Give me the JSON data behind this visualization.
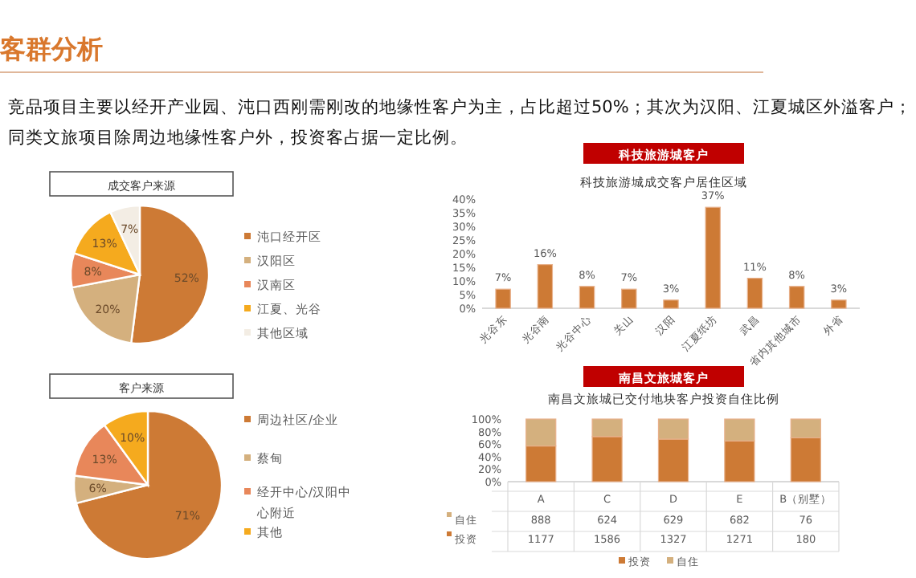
{
  "chart_data": [
    {
      "type": "other",
      "title": "客群分析",
      "annotations": [
        "竞品项目主要以经开产业园、沌口西刚需刚改的地缘性客户为主，占比超过50%；其次为汉阳、江夏城区外溢客户；同类文旅项目除周边地缘性客户外，投资客占据一定比例。"
      ]
    },
    {
      "type": "pie",
      "title": "成交客户来源",
      "categories": [
        "沌口经开区",
        "汉阳区",
        "汉南区",
        "江夏、光谷",
        "其他区域"
      ],
      "values": [
        52,
        20,
        8,
        13,
        7
      ],
      "colors": [
        "#cd7a35",
        "#d4b07e",
        "#e8875a",
        "#f5aa1e",
        "#f3ede4"
      ],
      "value_labels": [
        "52%",
        "20%",
        "8%",
        "13%",
        "7%"
      ],
      "legend": "right"
    },
    {
      "type": "bar",
      "subtitle": "科技旅游城客户",
      "title": "科技旅游城成交客户居住区域",
      "categories": [
        "光谷东",
        "光谷南",
        "光谷中心",
        "关山",
        "汉阳",
        "江夏纸坊",
        "武昌",
        "省内其他城市",
        "外省"
      ],
      "values": [
        7,
        16,
        8,
        7,
        3,
        37,
        11,
        8,
        3
      ],
      "value_labels": [
        "7%",
        "16%",
        "8%",
        "7%",
        "3%",
        "37%",
        "11%",
        "8%",
        "3%"
      ],
      "color": "#cd7a35",
      "ylim": [
        0,
        40
      ],
      "yticks": [
        {
          "value": 0,
          "label": "0%"
        },
        {
          "value": 5,
          "label": "5%"
        },
        {
          "value": 10,
          "label": "10%"
        },
        {
          "value": 15,
          "label": "15%"
        },
        {
          "value": 20,
          "label": "20%"
        },
        {
          "value": 25,
          "label": "25%"
        },
        {
          "value": 30,
          "label": "30%"
        },
        {
          "value": 35,
          "label": "35%"
        },
        {
          "value": 40,
          "label": "40%"
        }
      ],
      "grid": false
    },
    {
      "type": "pie",
      "title": "客户来源",
      "categories": [
        "周边社区/企业",
        "蔡甸",
        "经开中心/汉阳中心附近",
        "其他"
      ],
      "values": [
        71,
        6,
        13,
        10
      ],
      "colors": [
        "#cd7a35",
        "#d4b07e",
        "#e8875a",
        "#f5aa1e"
      ],
      "value_labels": [
        "71%",
        "6%",
        "13%",
        "10%"
      ],
      "legend": "right"
    },
    {
      "type": "bar",
      "subtitle": "南昌文旅城客户",
      "title": "南昌文旅城已交付地块客户投资自住比例",
      "categories": [
        "A",
        "C",
        "D",
        "E",
        "B（别墅）"
      ],
      "stacked": true,
      "series": [
        {
          "name": "投资",
          "color": "#cd7a35",
          "values": [
            57,
            72,
            68,
            65,
            70
          ]
        },
        {
          "name": "自住",
          "color": "#d4b07e",
          "values": [
            43,
            28,
            32,
            35,
            30
          ]
        }
      ],
      "annotations": [
        "888",
        "624",
        "629",
        "682",
        "76",
        "1177",
        "1586",
        "1327",
        "1271",
        "180"
      ],
      "ylim": [
        0,
        100
      ],
      "yticks": [
        {
          "value": 0,
          "label": "0%"
        },
        {
          "value": 20,
          "label": "20%"
        },
        {
          "value": 40,
          "label": "40%"
        },
        {
          "value": 60,
          "label": "60%"
        },
        {
          "value": 80,
          "label": "80%"
        },
        {
          "value": 100,
          "label": "100%"
        }
      ],
      "grid": false,
      "legend": "bottom"
    }
  ]
}
